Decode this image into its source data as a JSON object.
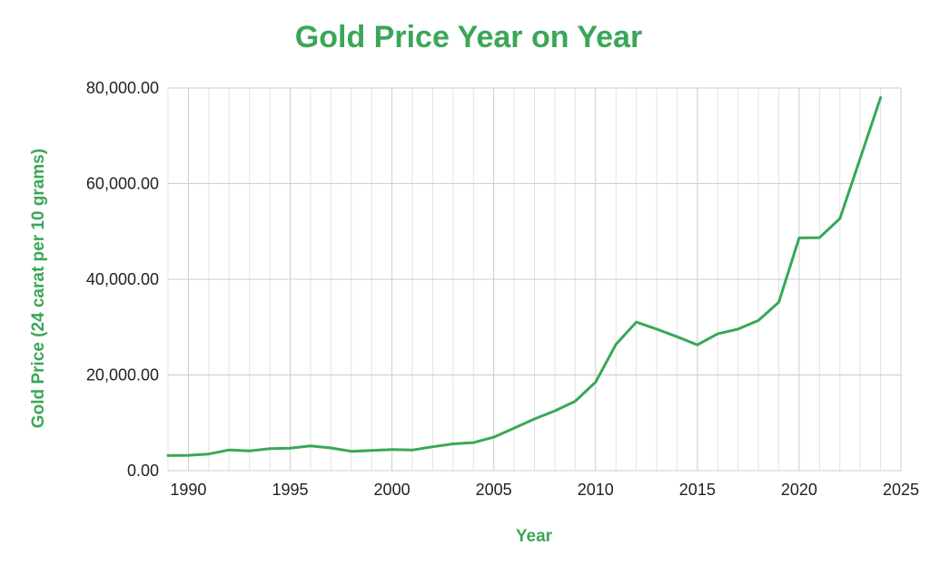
{
  "colors": {
    "accent": "#3aa757",
    "gridline": "#cccccc",
    "minor_gridline": "#e3e3e3",
    "text": "#222222"
  },
  "chart_data": {
    "type": "line",
    "title": "Gold Price Year on Year",
    "xlabel": "Year",
    "ylabel": "Gold Price (24 carat per 10 grams)",
    "xlim": [
      1989,
      2025
    ],
    "ylim": [
      0,
      80000
    ],
    "x_ticks": [
      1990,
      1995,
      2000,
      2005,
      2010,
      2015,
      2020,
      2025
    ],
    "x_tick_labels": [
      "1990",
      "1995",
      "2000",
      "2005",
      "2010",
      "2015",
      "2020",
      "2025"
    ],
    "y_ticks": [
      0,
      20000,
      40000,
      60000,
      80000
    ],
    "y_tick_labels": [
      "0.00",
      "20,000.00",
      "40,000.00",
      "60,000.00",
      "80,000.00"
    ],
    "grid": true,
    "legend": "none",
    "series": [
      {
        "x": [
          1989,
          1990,
          1991,
          1992,
          1993,
          1994,
          1995,
          1996,
          1997,
          1998,
          1999,
          2000,
          2001,
          2002,
          2003,
          2004,
          2005,
          2006,
          2007,
          2008,
          2009,
          2010,
          2011,
          2012,
          2013,
          2014,
          2015,
          2016,
          2017,
          2018,
          2019,
          2020,
          2021,
          2022,
          2023,
          2024
        ],
        "y": [
          3140,
          3200,
          3470,
          4330,
          4140,
          4600,
          4680,
          5160,
          4730,
          4040,
          4230,
          4400,
          4300,
          4990,
          5600,
          5850,
          7000,
          8900,
          10800,
          12500,
          14500,
          18500,
          26400,
          31050,
          29600,
          28000,
          26300,
          28600,
          29600,
          31400,
          35200,
          48650,
          48700,
          52700,
          65300,
          78000
        ]
      }
    ]
  }
}
